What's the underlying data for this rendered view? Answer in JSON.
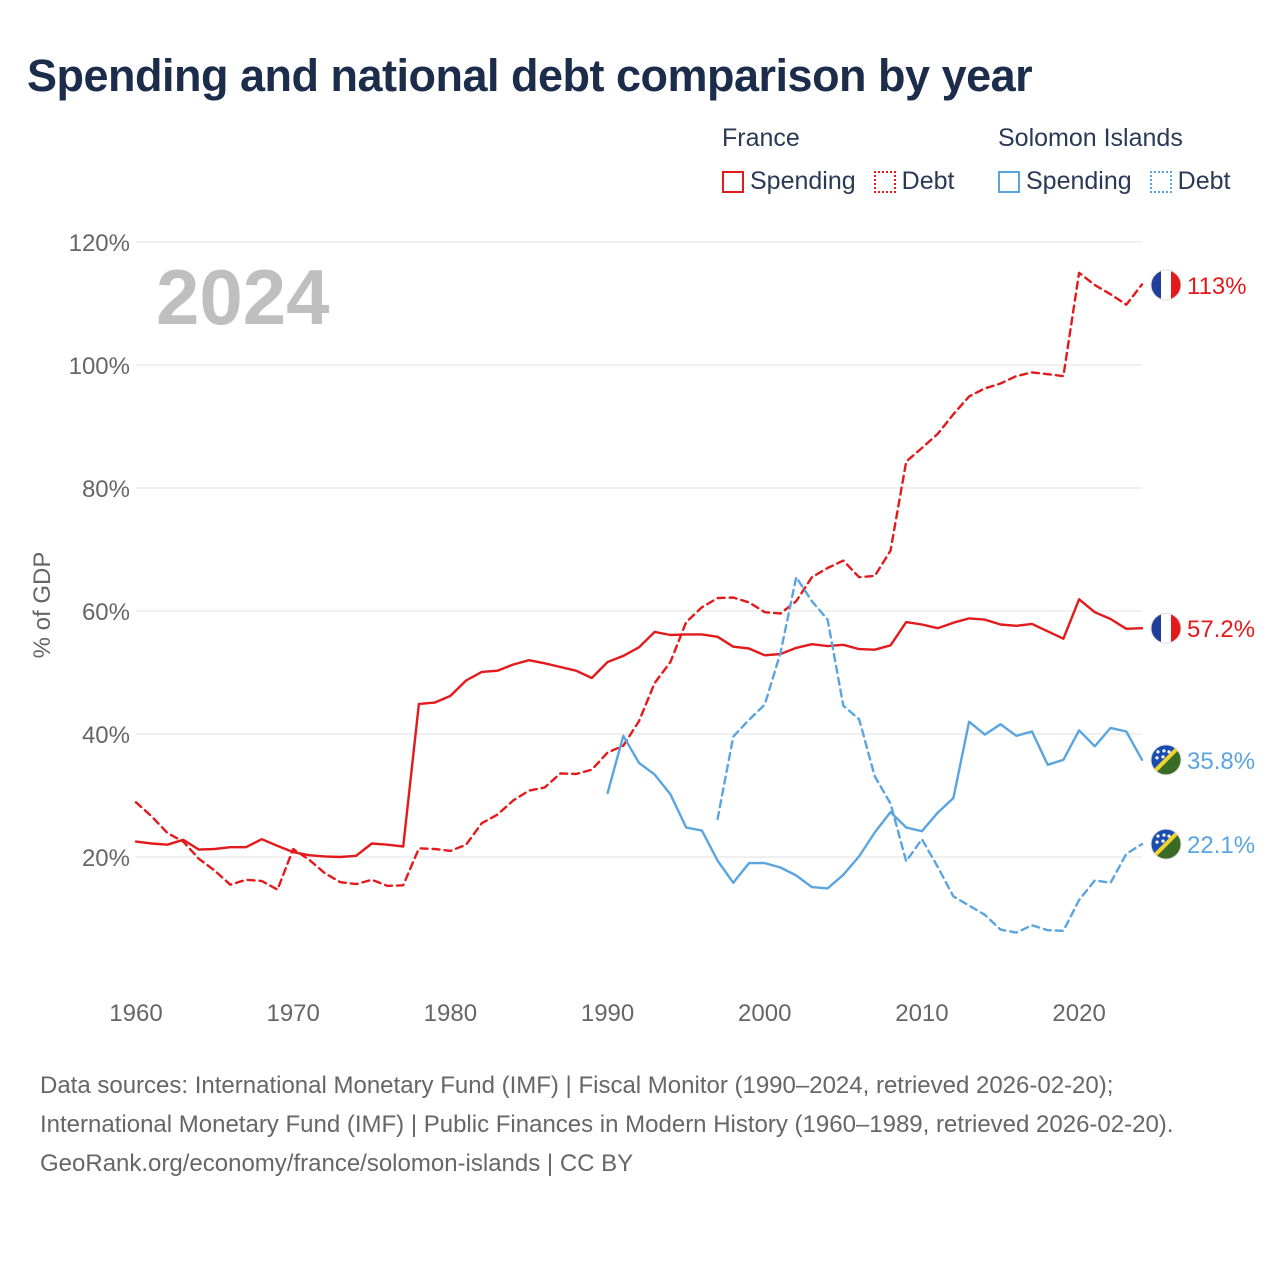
{
  "title": "Spending and national debt comparison by year",
  "legend": {
    "groups": [
      {
        "country": "France",
        "spending": "Spending",
        "debt": "Debt"
      },
      {
        "country": "Solomon Islands",
        "spending": "Spending",
        "debt": "Debt"
      }
    ]
  },
  "footer": {
    "sources": "Data sources: International Monetary Fund (IMF) | Fiscal Monitor (1990–2024, retrieved 2026-02-20); International Monetary Fund (IMF) | Public Finances in Modern History (1960–1989, retrieved 2026-02-20).",
    "credit": "GeoRank.org/economy/france/solomon-islands | CC BY"
  },
  "colors": {
    "france": "#e31a1c",
    "solomon": "#5aa5e0",
    "grid": "#e6e6e6",
    "axis_text": "#666666",
    "year_watermark": "#bfbfbf"
  },
  "chart_data": {
    "type": "line",
    "title": "Spending and national debt comparison by year",
    "watermark": "2024",
    "xlabel": "",
    "ylabel": "% of GDP",
    "xlim": [
      1960,
      2024
    ],
    "ylim": [
      0,
      120
    ],
    "x_ticks": [
      1960,
      1970,
      1980,
      1990,
      2000,
      2010,
      2020
    ],
    "y_ticks": [
      20,
      40,
      60,
      80,
      100,
      120
    ],
    "y_tick_labels": [
      "20%",
      "40%",
      "60%",
      "80%",
      "100%",
      "120%"
    ],
    "series": [
      {
        "name": "France Spending",
        "country": "France",
        "measure": "Spending",
        "style": "solid",
        "color": "#e31a1c",
        "end_label": "57.2%",
        "end_value": 57.2,
        "points": [
          [
            1960,
            22.5
          ],
          [
            1961,
            22.2
          ],
          [
            1962,
            22
          ],
          [
            1963,
            22.8
          ],
          [
            1964,
            21.2
          ],
          [
            1965,
            21.3
          ],
          [
            1966,
            21.6
          ],
          [
            1967,
            21.6
          ],
          [
            1968,
            22.9
          ],
          [
            1969,
            21.8
          ],
          [
            1970,
            20.8
          ],
          [
            1971,
            20.3
          ],
          [
            1972,
            20.1
          ],
          [
            1973,
            20
          ],
          [
            1974,
            20.2
          ],
          [
            1975,
            22.2
          ],
          [
            1976,
            22
          ],
          [
            1977,
            21.7
          ],
          [
            1978,
            44.9
          ],
          [
            1979,
            45.1
          ],
          [
            1980,
            46.2
          ],
          [
            1981,
            48.7
          ],
          [
            1982,
            50.1
          ],
          [
            1983,
            50.3
          ],
          [
            1984,
            51.3
          ],
          [
            1985,
            52
          ],
          [
            1986,
            51.5
          ],
          [
            1987,
            50.9
          ],
          [
            1988,
            50.3
          ],
          [
            1989,
            49.1
          ],
          [
            1990,
            51.7
          ],
          [
            1991,
            52.7
          ],
          [
            1992,
            54.1
          ],
          [
            1993,
            56.6
          ],
          [
            1994,
            56.1
          ],
          [
            1995,
            56.2
          ],
          [
            1996,
            56.2
          ],
          [
            1997,
            55.8
          ],
          [
            1998,
            54.2
          ],
          [
            1999,
            53.9
          ],
          [
            2000,
            52.8
          ],
          [
            2001,
            53
          ],
          [
            2002,
            54
          ],
          [
            2003,
            54.6
          ],
          [
            2004,
            54.3
          ],
          [
            2005,
            54.5
          ],
          [
            2006,
            53.8
          ],
          [
            2007,
            53.7
          ],
          [
            2008,
            54.4
          ],
          [
            2009,
            58.2
          ],
          [
            2010,
            57.8
          ],
          [
            2011,
            57.2
          ],
          [
            2012,
            58.1
          ],
          [
            2013,
            58.8
          ],
          [
            2014,
            58.6
          ],
          [
            2015,
            57.8
          ],
          [
            2016,
            57.6
          ],
          [
            2017,
            57.9
          ],
          [
            2018,
            56.7
          ],
          [
            2019,
            55.5
          ],
          [
            2020,
            61.9
          ],
          [
            2021,
            59.8
          ],
          [
            2022,
            58.7
          ],
          [
            2023,
            57.1
          ],
          [
            2024,
            57.2
          ]
        ]
      },
      {
        "name": "France Debt",
        "country": "France",
        "measure": "Debt",
        "style": "dashed",
        "color": "#e31a1c",
        "end_label": "113%",
        "end_value": 113,
        "points": [
          [
            1960,
            28.9
          ],
          [
            1961,
            26.6
          ],
          [
            1962,
            23.9
          ],
          [
            1963,
            22.5
          ],
          [
            1964,
            19.7
          ],
          [
            1965,
            17.8
          ],
          [
            1966,
            15.5
          ],
          [
            1967,
            16.3
          ],
          [
            1968,
            16.1
          ],
          [
            1969,
            14.7
          ],
          [
            1970,
            21.3
          ],
          [
            1971,
            19.6
          ],
          [
            1972,
            17.4
          ],
          [
            1973,
            15.9
          ],
          [
            1974,
            15.6
          ],
          [
            1975,
            16.3
          ],
          [
            1976,
            15.3
          ],
          [
            1977,
            15.4
          ],
          [
            1978,
            21.4
          ],
          [
            1979,
            21.3
          ],
          [
            1980,
            21
          ],
          [
            1981,
            22
          ],
          [
            1982,
            25.5
          ],
          [
            1983,
            26.9
          ],
          [
            1984,
            29.2
          ],
          [
            1985,
            30.8
          ],
          [
            1986,
            31.3
          ],
          [
            1987,
            33.6
          ],
          [
            1988,
            33.5
          ],
          [
            1989,
            34.2
          ],
          [
            1990,
            37
          ],
          [
            1991,
            38.1
          ],
          [
            1992,
            42.1
          ],
          [
            1993,
            48.3
          ],
          [
            1994,
            51.7
          ],
          [
            1995,
            58.2
          ],
          [
            1996,
            60.6
          ],
          [
            1997,
            62.1
          ],
          [
            1998,
            62.2
          ],
          [
            1999,
            61.4
          ],
          [
            2000,
            59.8
          ],
          [
            2001,
            59.6
          ],
          [
            2002,
            61.6
          ],
          [
            2003,
            65.5
          ],
          [
            2004,
            67
          ],
          [
            2005,
            68.2
          ],
          [
            2006,
            65.5
          ],
          [
            2007,
            65.7
          ],
          [
            2008,
            69.8
          ],
          [
            2009,
            84.3
          ],
          [
            2010,
            86.5
          ],
          [
            2011,
            88.8
          ],
          [
            2012,
            92
          ],
          [
            2013,
            94.9
          ],
          [
            2014,
            96.2
          ],
          [
            2015,
            97
          ],
          [
            2016,
            98.2
          ],
          [
            2017,
            98.8
          ],
          [
            2018,
            98.5
          ],
          [
            2019,
            98.2
          ],
          [
            2020,
            115
          ],
          [
            2021,
            113
          ],
          [
            2022,
            111.5
          ],
          [
            2023,
            109.8
          ],
          [
            2024,
            113.1
          ]
        ]
      },
      {
        "name": "Solomon Islands Spending",
        "country": "Solomon Islands",
        "measure": "Spending",
        "style": "solid",
        "color": "#5aa5e0",
        "end_label": "35.8%",
        "end_value": 35.8,
        "points": [
          [
            1990,
            30.4
          ],
          [
            1991,
            39.7
          ],
          [
            1992,
            35.3
          ],
          [
            1993,
            33.4
          ],
          [
            1994,
            30.2
          ],
          [
            1995,
            24.8
          ],
          [
            1996,
            24.3
          ],
          [
            1997,
            19.4
          ],
          [
            1998,
            15.8
          ],
          [
            1999,
            19
          ],
          [
            2000,
            19
          ],
          [
            2001,
            18.3
          ],
          [
            2002,
            17
          ],
          [
            2003,
            15.1
          ],
          [
            2004,
            14.9
          ],
          [
            2005,
            17.1
          ],
          [
            2006,
            20.1
          ],
          [
            2007,
            24
          ],
          [
            2008,
            27.3
          ],
          [
            2009,
            24.8
          ],
          [
            2010,
            24.2
          ],
          [
            2011,
            27.2
          ],
          [
            2012,
            29.6
          ],
          [
            2013,
            42
          ],
          [
            2014,
            39.9
          ],
          [
            2015,
            41.6
          ],
          [
            2016,
            39.7
          ],
          [
            2017,
            40.4
          ],
          [
            2018,
            35
          ],
          [
            2019,
            35.8
          ],
          [
            2020,
            40.6
          ],
          [
            2021,
            38
          ],
          [
            2022,
            41
          ],
          [
            2023,
            40.4
          ],
          [
            2024,
            35.8
          ]
        ]
      },
      {
        "name": "Solomon Islands Debt",
        "country": "Solomon Islands",
        "measure": "Debt",
        "style": "dashed",
        "color": "#5aa5e0",
        "end_label": "22.1%",
        "end_value": 22.1,
        "points": [
          [
            1997,
            26.2
          ],
          [
            1998,
            39.6
          ],
          [
            1999,
            42.3
          ],
          [
            2000,
            44.8
          ],
          [
            2001,
            53.2
          ],
          [
            2002,
            65.5
          ],
          [
            2003,
            61.6
          ],
          [
            2004,
            58.6
          ],
          [
            2005,
            44.6
          ],
          [
            2006,
            42.4
          ],
          [
            2007,
            33.1
          ],
          [
            2008,
            28.7
          ],
          [
            2009,
            19.3
          ],
          [
            2010,
            22.9
          ],
          [
            2011,
            18.4
          ],
          [
            2012,
            13.6
          ],
          [
            2013,
            12.1
          ],
          [
            2014,
            10.6
          ],
          [
            2015,
            8.2
          ],
          [
            2016,
            7.7
          ],
          [
            2017,
            8.9
          ],
          [
            2018,
            8.1
          ],
          [
            2019,
            8
          ],
          [
            2020,
            13
          ],
          [
            2021,
            16.2
          ],
          [
            2022,
            15.8
          ],
          [
            2023,
            20.5
          ],
          [
            2024,
            22.1
          ]
        ]
      }
    ]
  }
}
